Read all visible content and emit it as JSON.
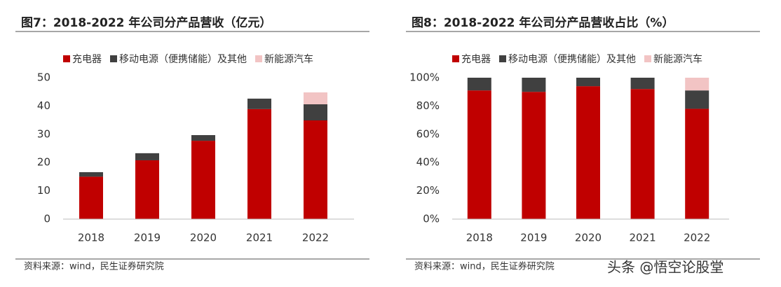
{
  "chart_data": [
    {
      "type": "bar",
      "stacked": true,
      "title": "图7：2018-2022 年公司分产品营收（亿元）",
      "categories": [
        "2018",
        "2019",
        "2020",
        "2021",
        "2022"
      ],
      "series": [
        {
          "name": "充电器",
          "color": "#c00000",
          "values": [
            15,
            20.8,
            27.7,
            38.9,
            34.9
          ]
        },
        {
          "name": "移动电源（便携储能）及其他",
          "color": "#404040",
          "values": [
            1.6,
            2.5,
            2,
            3.7,
            5.7
          ]
        },
        {
          "name": "新能源汽车",
          "color": "#f2c4c4",
          "values": [
            0,
            0,
            0,
            0,
            4.2
          ]
        }
      ],
      "ylim": [
        0,
        50
      ],
      "yticks": [
        0,
        10,
        20,
        30,
        40,
        50
      ],
      "source": "资料来源：wind，民生证券研究院"
    },
    {
      "type": "bar",
      "stacked": true,
      "title": "图8：2018-2022 年公司分产品营收占比（%）",
      "categories": [
        "2018",
        "2019",
        "2020",
        "2021",
        "2022"
      ],
      "series": [
        {
          "name": "充电器",
          "color": "#c00000",
          "values": [
            91,
            90,
            94,
            92,
            78
          ]
        },
        {
          "name": "移动电源（便携储能）及其他",
          "color": "#404040",
          "values": [
            9,
            10,
            6,
            8,
            13
          ]
        },
        {
          "name": "新能源汽车",
          "color": "#f2c4c4",
          "values": [
            0,
            0,
            0,
            0,
            9
          ]
        }
      ],
      "ylim": [
        0,
        100
      ],
      "yticks": [
        {
          "value": 0,
          "label": "0%"
        },
        {
          "value": 20,
          "label": "20%"
        },
        {
          "value": 40,
          "label": "40%"
        },
        {
          "value": 60,
          "label": "60%"
        },
        {
          "value": 80,
          "label": "80%"
        },
        {
          "value": 100,
          "label": "100%"
        }
      ],
      "source": "资料来源：wind，民生证券研究院"
    }
  ],
  "watermark": "头条 @悟空论股堂"
}
